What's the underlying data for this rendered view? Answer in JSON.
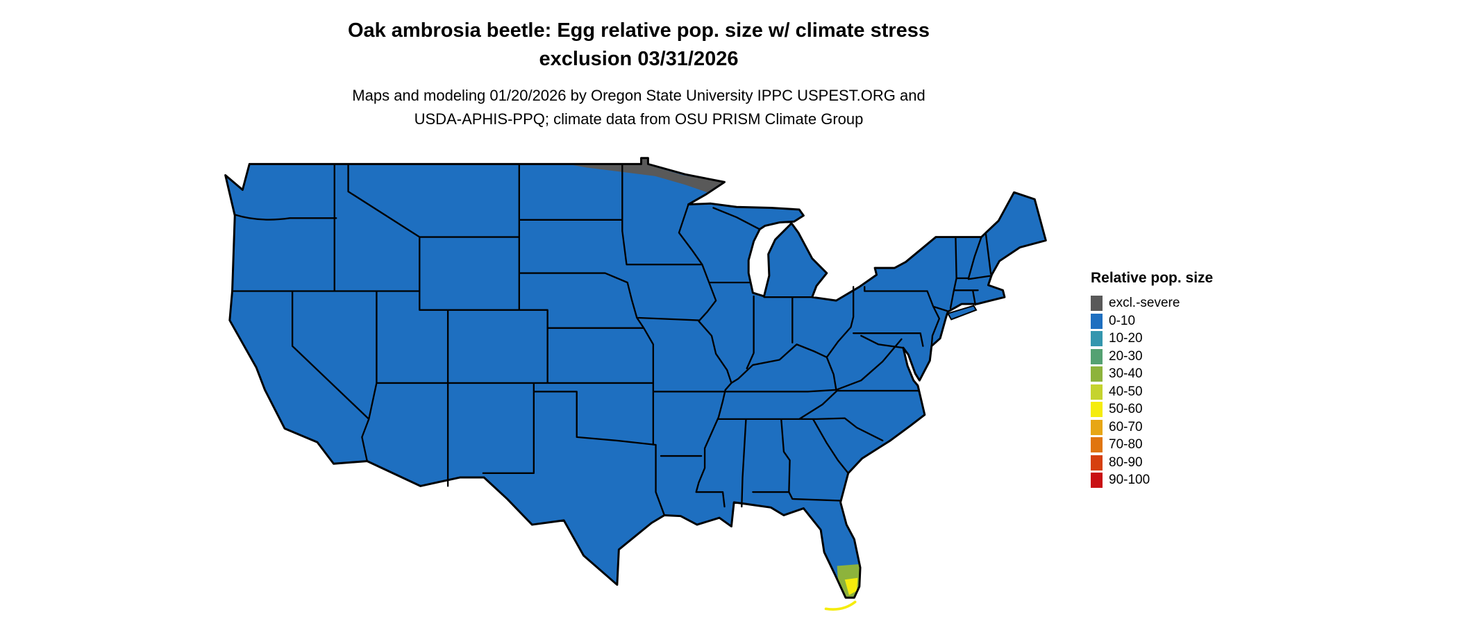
{
  "title": {
    "line1": "Oak ambrosia beetle: Egg relative pop. size w/ climate stress",
    "line2": "exclusion 03/31/2026"
  },
  "subtitle": {
    "line1": "Maps and modeling 01/20/2026 by Oregon State University IPPC USPEST.ORG and",
    "line2": "USDA-APHIS-PPQ; climate data from OSU PRISM Climate Group"
  },
  "legend": {
    "title": "Relative pop. size",
    "entries": [
      {
        "label": "excl.-severe",
        "color": "#595959"
      },
      {
        "label": "0-10",
        "color": "#1e6fc0"
      },
      {
        "label": "10-20",
        "color": "#3496ae"
      },
      {
        "label": "20-30",
        "color": "#54a172"
      },
      {
        "label": "30-40",
        "color": "#8db33c"
      },
      {
        "label": "40-50",
        "color": "#c5d32e"
      },
      {
        "label": "50-60",
        "color": "#f5ec0c"
      },
      {
        "label": "60-70",
        "color": "#e7a614"
      },
      {
        "label": "70-80",
        "color": "#e0750f"
      },
      {
        "label": "80-90",
        "color": "#d6400e"
      },
      {
        "label": "90-100",
        "color": "#c90f13"
      }
    ]
  },
  "map": {
    "region": "Continental United States",
    "fill_color": "#1e6fc0",
    "border_color": "#000000",
    "excl_severe_area": "strip along northern Minnesota / North Dakota border",
    "elevated_area": "southern tip of Florida shows 30-60 values (green to yellow)"
  }
}
